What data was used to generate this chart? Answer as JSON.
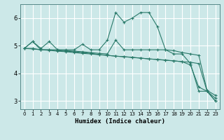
{
  "xlabel": "Humidex (Indice chaleur)",
  "bg_color": "#cce8e8",
  "grid_color": "#ffffff",
  "line_color": "#2a7a6a",
  "xlim": [
    -0.5,
    23.5
  ],
  "ylim": [
    2.7,
    6.5
  ],
  "yticks": [
    3,
    4,
    5,
    6
  ],
  "xticks": [
    0,
    1,
    2,
    3,
    4,
    5,
    6,
    7,
    8,
    9,
    10,
    11,
    12,
    13,
    14,
    15,
    16,
    17,
    18,
    19,
    20,
    21,
    22,
    23
  ],
  "series": [
    {
      "x": [
        0,
        1,
        2,
        3,
        4,
        5,
        6,
        7,
        8,
        9,
        10,
        11,
        12,
        13,
        14,
        15,
        16,
        17,
        18,
        19,
        20,
        21,
        22,
        23
      ],
      "y": [
        4.9,
        5.15,
        4.9,
        5.15,
        4.85,
        4.85,
        4.85,
        5.05,
        4.85,
        4.85,
        5.2,
        6.2,
        5.85,
        6.0,
        6.2,
        6.2,
        5.7,
        4.85,
        4.7,
        4.7,
        4.35,
        3.35,
        3.35,
        3.0
      ]
    },
    {
      "x": [
        0,
        1,
        2,
        3,
        4,
        5,
        6,
        7,
        8,
        9,
        10,
        11,
        12,
        13,
        14,
        15,
        16,
        17,
        18,
        19,
        20,
        21,
        22,
        23
      ],
      "y": [
        4.9,
        5.15,
        4.85,
        4.85,
        4.85,
        4.82,
        4.8,
        4.78,
        4.75,
        4.72,
        4.7,
        5.2,
        4.85,
        4.85,
        4.85,
        4.85,
        4.85,
        4.85,
        4.82,
        4.75,
        4.7,
        4.65,
        3.38,
        3.2
      ]
    },
    {
      "x": [
        0,
        1,
        2,
        3,
        4,
        5,
        6,
        7,
        8,
        9,
        10,
        11,
        12,
        13,
        14,
        15,
        16,
        17,
        18,
        19,
        20,
        21,
        22,
        23
      ],
      "y": [
        4.9,
        4.9,
        4.85,
        4.85,
        4.82,
        4.8,
        4.78,
        4.75,
        4.72,
        4.68,
        4.65,
        4.62,
        4.6,
        4.58,
        4.55,
        4.52,
        4.5,
        4.48,
        4.45,
        4.42,
        4.3,
        3.5,
        3.35,
        3.1
      ]
    },
    {
      "x": [
        0,
        1,
        2,
        3,
        4,
        5,
        6,
        7,
        8,
        9,
        10,
        11,
        12,
        13,
        14,
        15,
        16,
        17,
        18,
        19,
        20,
        21,
        22,
        23
      ],
      "y": [
        4.9,
        4.88,
        4.85,
        4.83,
        4.8,
        4.78,
        4.75,
        4.72,
        4.7,
        4.67,
        4.65,
        4.62,
        4.6,
        4.57,
        4.55,
        4.52,
        4.5,
        4.47,
        4.45,
        4.42,
        4.4,
        4.35,
        3.35,
        3.0
      ]
    }
  ]
}
